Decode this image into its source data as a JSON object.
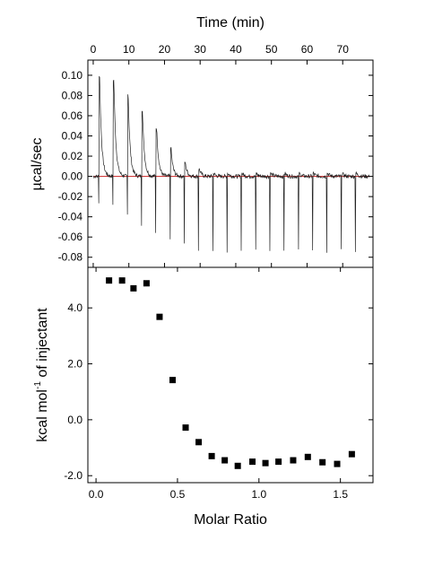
{
  "chart_data": [
    {
      "type": "line",
      "panel": "top",
      "xlabel": "Time (min)",
      "ylabel": "µcal/sec",
      "xlim": [
        -1.5,
        78.5
      ],
      "ylim": [
        -0.09,
        0.115
      ],
      "x_ticks": [
        0,
        10,
        20,
        30,
        40,
        50,
        60,
        70
      ],
      "x_tick_labels": [
        "0",
        "10",
        "20",
        "30",
        "40",
        "50",
        "60",
        "70"
      ],
      "y_ticks": [
        0.1,
        0.08,
        0.06,
        0.04,
        0.02,
        0.0,
        -0.02,
        -0.04,
        -0.06,
        -0.08
      ],
      "y_tick_labels": [
        "0.10",
        "0.08",
        "0.06",
        "0.04",
        "0.02",
        "0.00",
        "-0.02",
        "-0.04",
        "-0.06",
        "-0.08"
      ],
      "series": [
        {
          "color": "#222222",
          "injection_times": [
            1.5,
            5.5,
            9.5,
            13.5,
            17.5,
            21.5,
            25.5,
            29.5,
            33.5,
            37.5,
            41.5,
            45.5,
            49.5,
            53.5,
            57.5,
            61.5,
            65.5,
            69.5,
            73.5
          ],
          "peak_max": [
            0.099,
            0.095,
            0.083,
            0.066,
            0.048,
            0.029,
            0.014,
            0.007,
            0.003,
            0.003,
            0.003,
            0.003,
            0.003,
            0.003,
            0.003,
            0.003,
            0.003,
            0.003,
            0.003
          ],
          "peak_min": [
            -0.025,
            -0.028,
            -0.038,
            -0.047,
            -0.055,
            -0.062,
            -0.068,
            -0.073,
            -0.074,
            -0.074,
            -0.074,
            -0.074,
            -0.074,
            -0.074,
            -0.074,
            -0.074,
            -0.074,
            -0.074,
            -0.074
          ]
        },
        {
          "color": "#cc2222",
          "baseline": 0.0
        }
      ]
    },
    {
      "type": "scatter",
      "panel": "bottom",
      "xlabel": "Molar Ratio",
      "ylabel_main": "kcal mol",
      "ylabel_sup": "-1",
      "ylabel_tail": " of injectant",
      "xlim": [
        -0.05,
        1.7
      ],
      "ylim": [
        -2.25,
        5.45
      ],
      "x_ticks": [
        0.0,
        0.5,
        1.0,
        1.5
      ],
      "x_tick_labels": [
        "0.0",
        "0.5",
        "1.0",
        "1.5"
      ],
      "y_ticks": [
        4.0,
        2.0,
        0.0,
        -2.0
      ],
      "y_tick_labels": [
        "4.0",
        "2.0",
        "0.0",
        "-2.0"
      ],
      "series": [
        {
          "marker": "square",
          "color": "#000000",
          "x": [
            0.08,
            0.16,
            0.23,
            0.31,
            0.39,
            0.47,
            0.55,
            0.63,
            0.71,
            0.79,
            0.87,
            0.96,
            1.04,
            1.12,
            1.21,
            1.3,
            1.39,
            1.48,
            1.57
          ],
          "y": [
            4.98,
            4.98,
            4.7,
            4.88,
            3.68,
            1.42,
            -0.28,
            -0.8,
            -1.3,
            -1.45,
            -1.65,
            -1.5,
            -1.55,
            -1.5,
            -1.45,
            -1.33,
            -1.52,
            -1.58,
            -1.23
          ]
        }
      ]
    }
  ]
}
